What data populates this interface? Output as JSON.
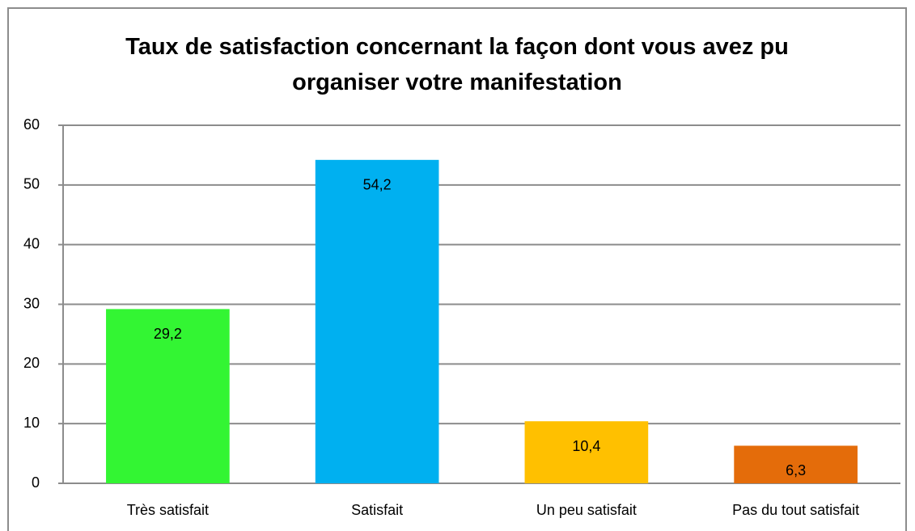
{
  "chart_data": {
    "type": "bar",
    "title": "Taux de satisfaction concernant la façon dont vous avez pu organiser votre manifestation",
    "categories": [
      "Très satisfait",
      "Satisfait",
      "Un peu satisfait",
      "Pas du tout satisfait"
    ],
    "values": [
      29.2,
      54.2,
      10.4,
      6.3
    ],
    "value_labels": [
      "29,2",
      "54,2",
      "10,4",
      "6,3"
    ],
    "colors": [
      "#33f533",
      "#00b0f0",
      "#ffc000",
      "#e46c0a"
    ],
    "ylim": [
      0,
      60
    ],
    "yticks": [
      0,
      10,
      20,
      30,
      40,
      50,
      60
    ],
    "grid": true
  }
}
